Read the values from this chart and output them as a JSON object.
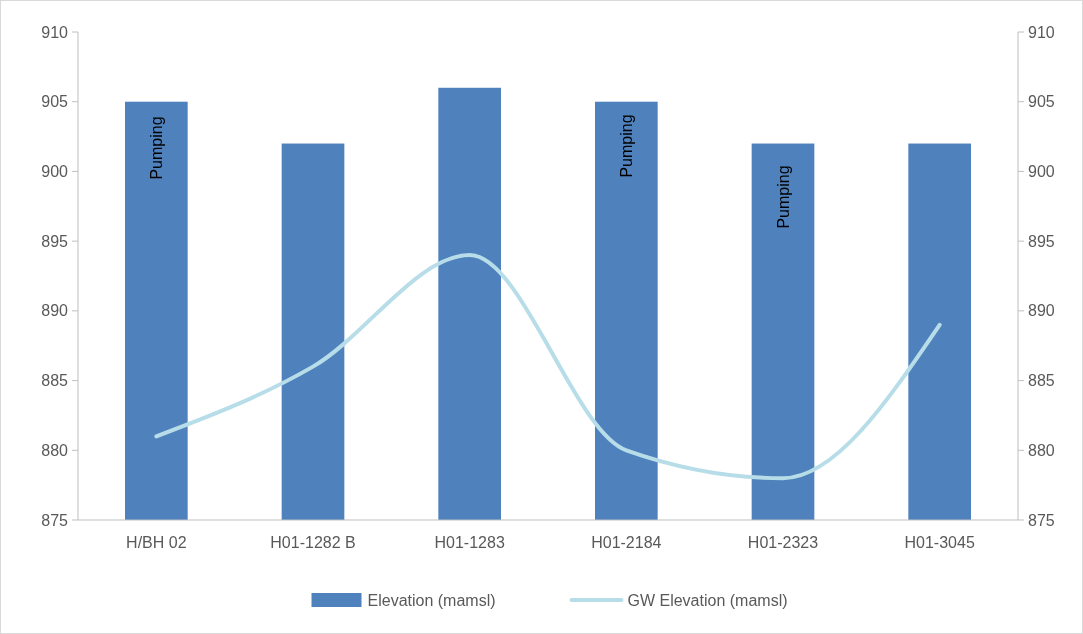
{
  "chart_data": {
    "type": "bar",
    "categories": [
      "H/BH 02",
      "H01-1282 B",
      "H01-1283",
      "H01-2184",
      "H01-2323",
      "H01-3045"
    ],
    "series": [
      {
        "name": "Elevation (mamsl)",
        "color": "#4f81bd",
        "values": [
          905,
          902,
          906,
          905,
          902,
          902
        ]
      },
      {
        "name": "GW Elevation (mamsl)",
        "type": "line",
        "color": "#b7dde8",
        "values": [
          881,
          886,
          894,
          880,
          878,
          889
        ]
      }
    ],
    "ylim": [
      875,
      910
    ],
    "yticks": [
      875,
      880,
      885,
      890,
      895,
      900,
      905,
      910
    ],
    "y2lim": [
      875,
      910
    ],
    "y2ticks": [
      875,
      880,
      885,
      890,
      895,
      900,
      905,
      910
    ],
    "annotations": [
      "Pumping",
      "Pumping",
      "Pumping"
    ],
    "legend": "bottom",
    "grid": false,
    "marker": "none",
    "line_style": "solid"
  }
}
